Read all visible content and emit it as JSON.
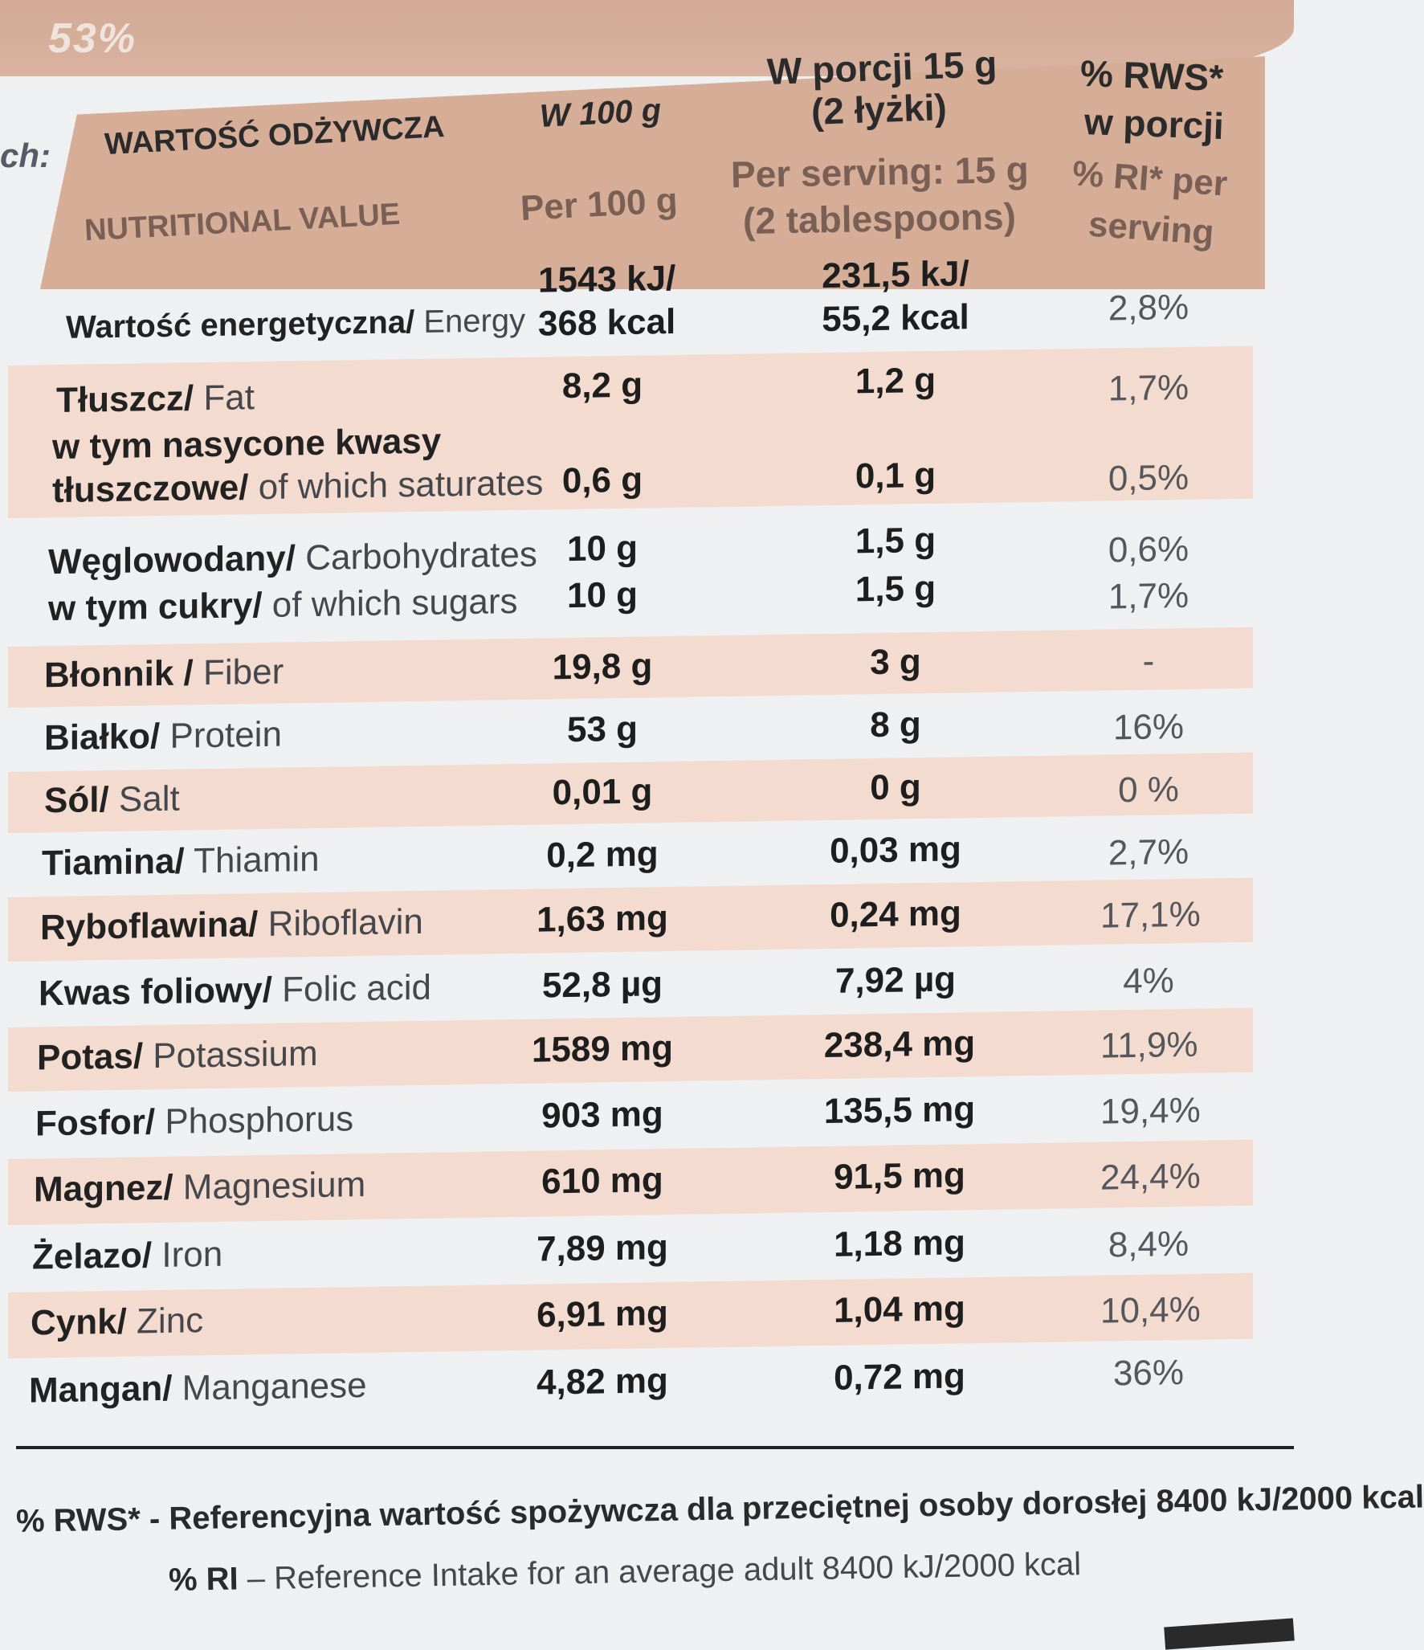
{
  "top": {
    "percent": "53%",
    "side_label": "ch:"
  },
  "header": {
    "col1_pl": "WARTOŚĆ ODŻYWCZA",
    "col1_en": "NUTRITIONAL VALUE",
    "col2_pl": "W 100 g",
    "col2_en": "Per 100 g",
    "col3_pl_1": "W porcji 15 g",
    "col3_pl_2": "(2 łyżki)",
    "col3_en_1": "Per serving: 15 g",
    "col3_en_2": "(2 tablespoons)",
    "col4_pl_1": "% RWS*",
    "col4_pl_2": "w porcji",
    "col4_en_1": "% RI* per",
    "col4_en_2": "serving"
  },
  "rows": [
    {
      "pl": "Wartość energetyczna/",
      "en": " Energy",
      "v100_1": "1543 kJ/",
      "v100_2": "368 kcal",
      "vserv_1": "231,5 kJ/",
      "vserv_2": "55,2 kcal",
      "ri": "2,8%"
    },
    {
      "pl": "Tłuszcz/",
      "en": " Fat",
      "v100": "8,2 g",
      "vserv": "1,2 g",
      "ri": "1,7%"
    },
    {
      "pl_1": "w tym nasycone kwasy",
      "pl_2": "tłuszczowe/",
      "en": " of which saturates",
      "v100": "0,6 g",
      "vserv": "0,1 g",
      "ri": "0,5%"
    },
    {
      "pl": "Węglowodany/",
      "en": " Carbohydrates",
      "v100": "10 g",
      "vserv": "1,5 g",
      "ri": "0,6%"
    },
    {
      "pl": "w tym cukry/",
      "en": " of which sugars",
      "v100": "10 g",
      "vserv": "1,5 g",
      "ri": "1,7%"
    },
    {
      "pl": "Błonnik /",
      "en": " Fiber",
      "v100": "19,8 g",
      "vserv": "3 g",
      "ri": "-"
    },
    {
      "pl": "Białko/",
      "en": " Protein",
      "v100": "53 g",
      "vserv": "8 g",
      "ri": "16%"
    },
    {
      "pl": "Sól/",
      "en": " Salt",
      "v100": "0,01 g",
      "vserv": "0 g",
      "ri": "0 %"
    },
    {
      "pl": "Tiamina/",
      "en": " Thiamin",
      "v100": "0,2 mg",
      "vserv": "0,03 mg",
      "ri": "2,7%"
    },
    {
      "pl": "Ryboflawina/",
      "en": " Riboflavin",
      "v100": "1,63 mg",
      "vserv": "0,24 mg",
      "ri": "17,1%"
    },
    {
      "pl": "Kwas foliowy/",
      "en": " Folic acid",
      "v100": "52,8  µg",
      "vserv": "7,92 µg",
      "ri": "4%"
    },
    {
      "pl": "Potas/",
      "en": " Potassium",
      "v100": "1589 mg",
      "vserv": "238,4 mg",
      "ri": "11,9%"
    },
    {
      "pl": "Fosfor/",
      "en": " Phosphorus",
      "v100": "903 mg",
      "vserv": "135,5 mg",
      "ri": "19,4%"
    },
    {
      "pl": "Magnez/",
      "en": " Magnesium",
      "v100": "610 mg",
      "vserv": "91,5 mg",
      "ri": "24,4%"
    },
    {
      "pl": "Żelazo/",
      "en": " Iron",
      "v100": "7,89 mg",
      "vserv": "1,18 mg",
      "ri": "8,4%"
    },
    {
      "pl": "Cynk/",
      "en": " Zinc",
      "v100": "6,91 mg",
      "vserv": "1,04 mg",
      "ri": "10,4%"
    },
    {
      "pl": "Mangan/",
      "en": " Manganese",
      "v100": "4,82 mg",
      "vserv": "0,72 mg",
      "ri": "36%"
    }
  ],
  "footer": {
    "line1": "% RWS* - Referencyjna wartość spożywcza dla przeciętnej osoby dorosłej 8400 kJ/2000 kcal",
    "line2_a": "% RI",
    "line2_b": " – Reference Intake for an average adult 8400 kJ/2000 kcal"
  }
}
